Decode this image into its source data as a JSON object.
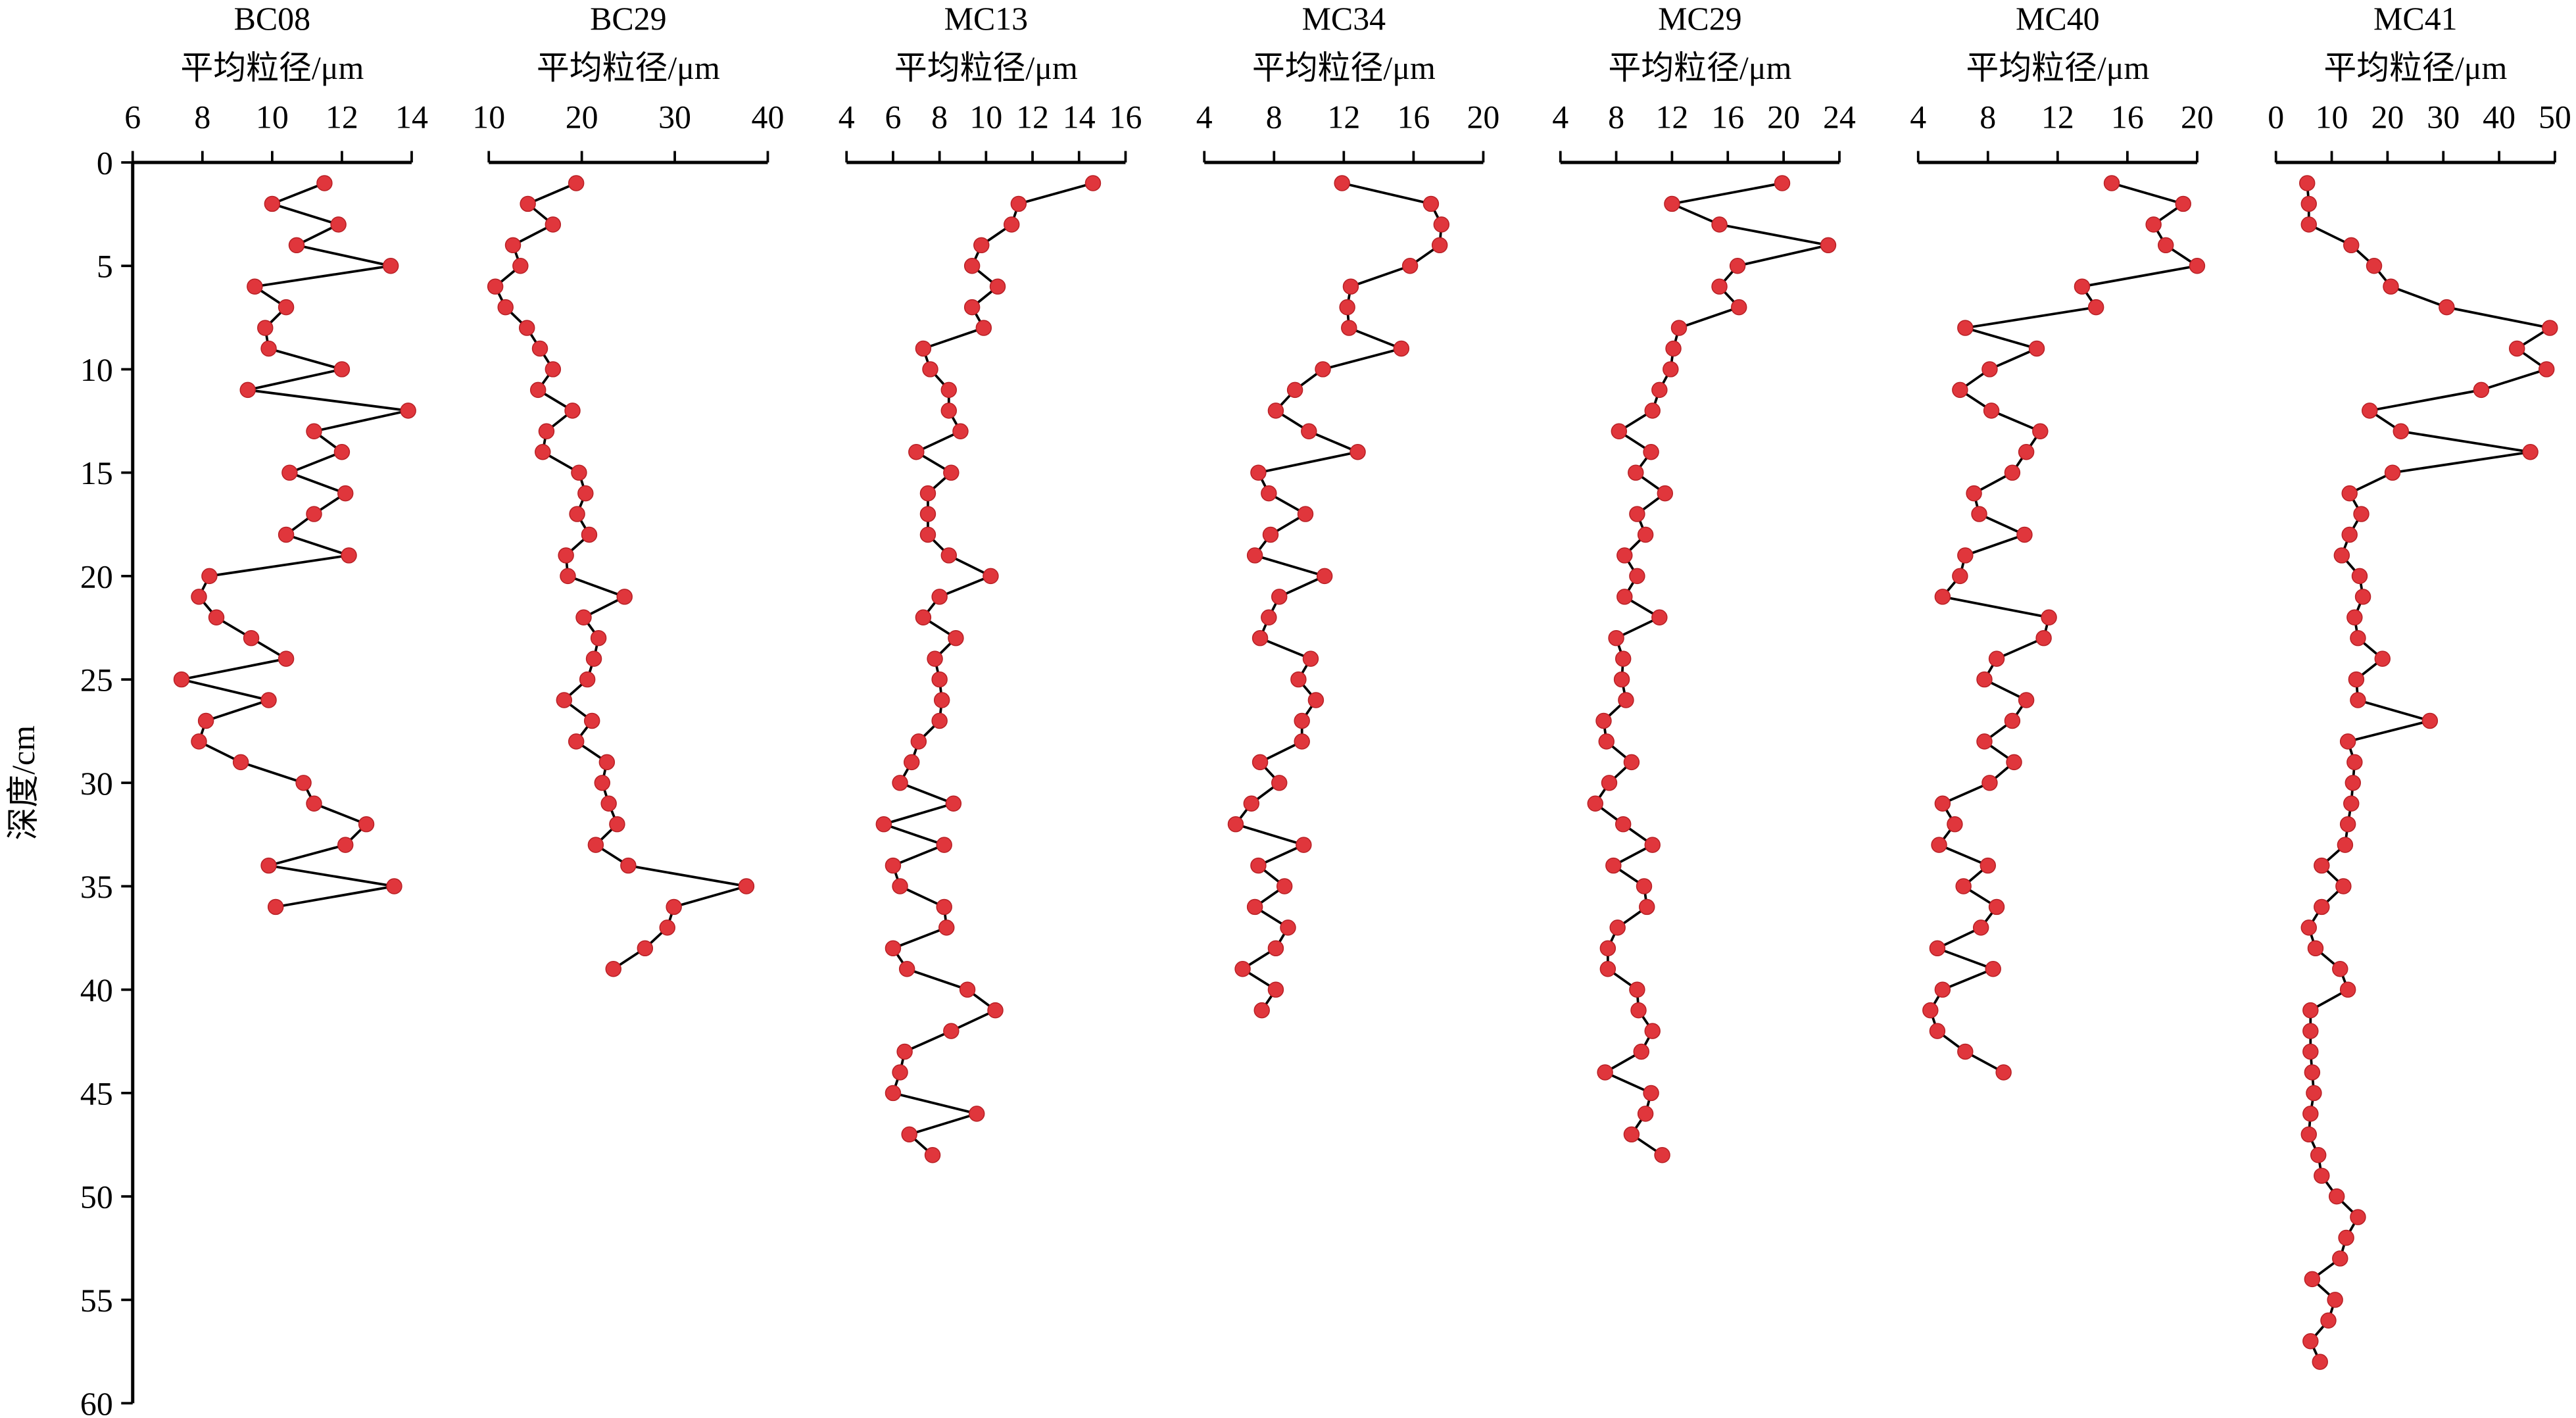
{
  "chart_data": [
    {
      "type": "line",
      "title": "BC08",
      "xlabel": "平均粒径/μm",
      "ylabel": "深度/cm",
      "xlim": [
        6,
        14
      ],
      "xticks": [
        6,
        8,
        10,
        12,
        14
      ],
      "ylim": [
        0,
        60
      ],
      "yticks": [
        0,
        5,
        10,
        15,
        20,
        25,
        30,
        35,
        40,
        45,
        50,
        55,
        60
      ],
      "color": "#e0363c",
      "line_color": "#000000",
      "depths": [
        1,
        2,
        3,
        4,
        5,
        6,
        7,
        8,
        9,
        10,
        11,
        12,
        13,
        14,
        15,
        16,
        17,
        18,
        19,
        20,
        21,
        22,
        23,
        24,
        25,
        26,
        27,
        28,
        29,
        30,
        31,
        32,
        33,
        34,
        35,
        36
      ],
      "values": [
        11.5,
        10.0,
        11.9,
        10.7,
        13.4,
        9.5,
        10.4,
        9.8,
        9.9,
        12.0,
        9.3,
        13.9,
        11.2,
        12.0,
        10.5,
        12.1,
        11.2,
        10.4,
        12.2,
        8.2,
        7.9,
        8.4,
        9.4,
        10.4,
        7.4,
        9.9,
        8.1,
        7.9,
        9.1,
        10.9,
        11.2,
        12.7,
        12.1,
        9.9,
        13.5,
        10.1
      ]
    },
    {
      "type": "line",
      "title": "BC29",
      "xlabel": "平均粒径/μm",
      "xlim": [
        10,
        40
      ],
      "xticks": [
        10,
        20,
        30,
        40
      ],
      "color": "#e0363c",
      "line_color": "#000000",
      "depths": [
        1,
        2,
        3,
        4,
        5,
        6,
        7,
        8,
        9,
        10,
        11,
        12,
        13,
        14,
        15,
        16,
        17,
        18,
        19,
        20,
        21,
        22,
        23,
        24,
        25,
        26,
        27,
        28,
        29,
        30,
        31,
        32,
        33,
        34,
        35,
        36,
        37,
        38,
        39
      ],
      "values": [
        19.4,
        14.2,
        16.9,
        12.6,
        13.4,
        10.7,
        11.8,
        14.1,
        15.5,
        16.9,
        15.3,
        19.0,
        16.2,
        15.8,
        19.7,
        20.4,
        19.5,
        20.8,
        18.3,
        18.5,
        24.6,
        20.2,
        21.8,
        21.3,
        20.6,
        18.1,
        21.1,
        19.4,
        22.7,
        22.2,
        22.9,
        23.8,
        21.5,
        25.0,
        37.7,
        29.9,
        29.2,
        26.8,
        23.4
      ]
    },
    {
      "type": "line",
      "title": "MC13",
      "xlabel": "平均粒径/μm",
      "xlim": [
        4,
        16
      ],
      "xticks": [
        4,
        6,
        8,
        10,
        12,
        14,
        16
      ],
      "color": "#e0363c",
      "line_color": "#000000",
      "depths": [
        1,
        2,
        3,
        4,
        5,
        6,
        7,
        8,
        9,
        10,
        11,
        12,
        13,
        14,
        15,
        16,
        17,
        18,
        19,
        20,
        21,
        22,
        23,
        24,
        25,
        26,
        27,
        28,
        29,
        30,
        31,
        32,
        33,
        34,
        35,
        36,
        37,
        38,
        39,
        40,
        41,
        42,
        43,
        44,
        45,
        46,
        47,
        48
      ],
      "values": [
        14.6,
        11.4,
        11.1,
        9.8,
        9.4,
        10.5,
        9.4,
        9.9,
        7.3,
        7.6,
        8.4,
        8.4,
        8.9,
        7.0,
        8.5,
        7.5,
        7.5,
        7.5,
        8.4,
        10.2,
        8.0,
        7.3,
        8.7,
        7.8,
        8.0,
        8.1,
        8.0,
        7.1,
        6.8,
        6.3,
        8.6,
        5.6,
        8.2,
        6.0,
        6.3,
        8.2,
        8.3,
        6.0,
        6.6,
        9.2,
        10.4,
        8.5,
        6.5,
        6.3,
        6.0,
        9.6,
        6.7,
        7.7
      ]
    },
    {
      "type": "line",
      "title": "MC34",
      "xlabel": "平均粒径/μm",
      "xlim": [
        4,
        20
      ],
      "xticks": [
        4,
        8,
        12,
        16,
        20
      ],
      "color": "#e0363c",
      "line_color": "#000000",
      "depths": [
        1,
        2,
        3,
        4,
        5,
        6,
        7,
        8,
        9,
        10,
        11,
        12,
        13,
        14,
        15,
        16,
        17,
        18,
        19,
        20,
        21,
        22,
        23,
        24,
        25,
        26,
        27,
        28,
        29,
        30,
        31,
        32,
        33,
        34,
        35,
        36,
        37,
        38,
        39,
        40,
        41
      ],
      "values": [
        11.9,
        17.0,
        17.6,
        17.5,
        15.8,
        12.4,
        12.2,
        12.3,
        15.3,
        10.8,
        9.2,
        8.1,
        10.0,
        12.8,
        7.1,
        7.7,
        9.8,
        7.8,
        6.9,
        10.9,
        8.3,
        7.7,
        7.2,
        10.1,
        9.4,
        10.4,
        9.6,
        9.6,
        7.2,
        8.3,
        6.7,
        5.8,
        9.7,
        7.1,
        8.6,
        6.9,
        8.8,
        8.1,
        6.2,
        8.1,
        7.3
      ]
    },
    {
      "type": "line",
      "title": "MC29",
      "xlabel": "平均粒径/μm",
      "xlim": [
        4,
        24
      ],
      "xticks": [
        4,
        8,
        12,
        16,
        20,
        24
      ],
      "color": "#e0363c",
      "line_color": "#000000",
      "depths": [
        1,
        2,
        3,
        4,
        5,
        6,
        7,
        8,
        9,
        10,
        11,
        12,
        13,
        14,
        15,
        16,
        17,
        18,
        19,
        20,
        21,
        22,
        23,
        24,
        25,
        26,
        27,
        28,
        29,
        30,
        31,
        32,
        33,
        34,
        35,
        36,
        37,
        38,
        39,
        40,
        41,
        42,
        43,
        44,
        45,
        46,
        47,
        48
      ],
      "values": [
        19.9,
        12.0,
        15.4,
        23.2,
        16.7,
        15.4,
        16.8,
        12.5,
        12.1,
        11.9,
        11.1,
        10.6,
        8.2,
        10.5,
        9.4,
        11.5,
        9.5,
        10.1,
        8.6,
        9.5,
        8.6,
        11.1,
        8.0,
        8.5,
        8.4,
        8.7,
        7.1,
        7.3,
        9.1,
        7.5,
        6.5,
        8.5,
        10.6,
        7.8,
        10.0,
        10.2,
        8.1,
        7.4,
        7.4,
        9.5,
        9.6,
        10.6,
        9.8,
        7.2,
        10.5,
        10.1,
        9.1,
        11.3
      ]
    },
    {
      "type": "line",
      "title": "MC40",
      "xlabel": "平均粒径/μm",
      "xlim": [
        4,
        20
      ],
      "xticks": [
        4,
        8,
        12,
        16,
        20
      ],
      "color": "#e0363c",
      "line_color": "#000000",
      "depths": [
        1,
        2,
        3,
        4,
        5,
        6,
        7,
        8,
        9,
        10,
        11,
        12,
        13,
        14,
        15,
        16,
        17,
        18,
        19,
        20,
        21,
        22,
        23,
        24,
        25,
        26,
        27,
        28,
        29,
        30,
        31,
        32,
        33,
        34,
        35,
        36,
        37,
        38,
        39,
        40,
        41,
        42,
        43,
        44
      ],
      "values": [
        15.1,
        19.2,
        17.5,
        18.2,
        20.0,
        13.4,
        14.2,
        6.7,
        10.8,
        8.1,
        6.4,
        8.2,
        11.0,
        10.2,
        9.4,
        7.2,
        7.5,
        10.1,
        6.7,
        6.4,
        5.4,
        11.5,
        11.2,
        8.5,
        7.8,
        10.2,
        9.4,
        7.8,
        9.5,
        8.1,
        5.4,
        6.1,
        5.2,
        8.0,
        6.6,
        8.5,
        7.6,
        5.1,
        8.3,
        5.4,
        4.7,
        5.1,
        6.7,
        8.9
      ]
    },
    {
      "type": "line",
      "title": "MC41",
      "xlabel": "平均粒径/μm",
      "xlim": [
        0,
        50
      ],
      "xticks": [
        0,
        10,
        20,
        30,
        40,
        50
      ],
      "color": "#e0363c",
      "line_color": "#000000",
      "depths": [
        1,
        2,
        3,
        4,
        5,
        6,
        7,
        8,
        9,
        10,
        11,
        12,
        13,
        14,
        15,
        16,
        17,
        18,
        19,
        20,
        21,
        22,
        23,
        24,
        25,
        26,
        27,
        28,
        29,
        30,
        31,
        32,
        33,
        34,
        35,
        36,
        37,
        38,
        39,
        40,
        41,
        42,
        43,
        44,
        45,
        46,
        47,
        48,
        49,
        50,
        51,
        52,
        53,
        54,
        55,
        56,
        57,
        58
      ],
      "values": [
        5.6,
        5.9,
        5.9,
        13.5,
        17.6,
        20.6,
        30.6,
        49.1,
        43.2,
        48.5,
        36.8,
        16.8,
        22.4,
        45.6,
        20.9,
        13.2,
        15.3,
        13.2,
        11.8,
        15.0,
        15.6,
        14.1,
        14.7,
        19.1,
        14.4,
        14.7,
        27.6,
        12.9,
        14.1,
        13.8,
        13.5,
        12.9,
        12.4,
        8.2,
        12.1,
        8.2,
        5.9,
        7.1,
        11.5,
        12.9,
        6.2,
        6.2,
        6.2,
        6.5,
        6.8,
        6.2,
        5.9,
        7.6,
        8.2,
        10.9,
        14.7,
        12.6,
        11.5,
        6.5,
        10.6,
        9.4,
        6.2,
        7.9
      ]
    }
  ]
}
